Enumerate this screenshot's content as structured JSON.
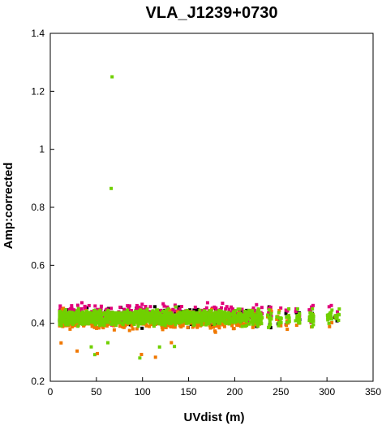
{
  "chart_data": {
    "type": "scatter",
    "title": "VLA_J1239+0730",
    "xlabel": "UVdist (m)",
    "ylabel": "Amp:corrected",
    "xlim": [
      0,
      350
    ],
    "ylim": [
      0.2,
      1.4
    ],
    "x_ticks": [
      "0",
      "50",
      "100",
      "150",
      "200",
      "250",
      "300",
      "350"
    ],
    "y_ticks": [
      "0.2",
      "0.4",
      "0.6",
      "0.8",
      "1",
      "1.2",
      "1.4"
    ],
    "grid": false,
    "series_colors": [
      "#000000",
      "#e0007a",
      "#f07800",
      "#70d000"
    ],
    "cloud": {
      "x_range": [
        10,
        312
      ],
      "core_y_range": [
        0.37,
        0.47
      ],
      "upper_y_max": 0.53,
      "lower_y_min": 0.28
    },
    "outliers": [
      {
        "x": 67,
        "y": 1.25,
        "color": "#70d000"
      },
      {
        "x": 66,
        "y": 0.865,
        "color": "#70d000"
      }
    ]
  }
}
